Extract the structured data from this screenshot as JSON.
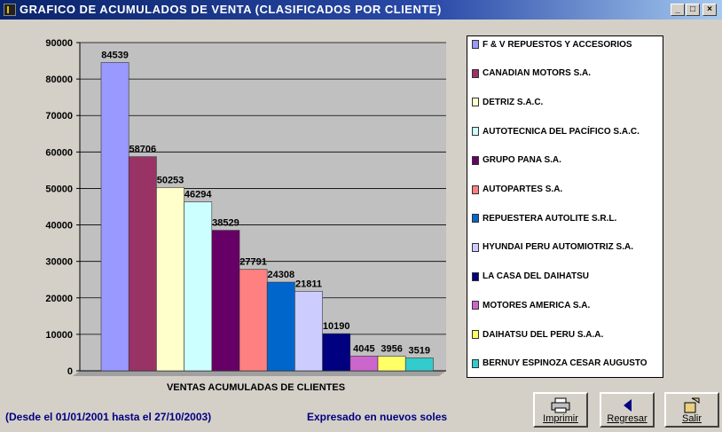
{
  "window": {
    "title": "GRAFICO DE ACUMULADOS DE VENTA (CLASIFICADOS POR CLIENTE)"
  },
  "chart_data": {
    "type": "bar",
    "xlabel": "VENTAS ACUMULADAS DE CLIENTES",
    "ylabel": "",
    "ylim": [
      0,
      90000
    ],
    "yticks": [
      0,
      10000,
      20000,
      30000,
      40000,
      50000,
      60000,
      70000,
      80000,
      90000
    ],
    "grid": true,
    "legend_position": "right",
    "series": [
      {
        "name": "F & V REPUESTOS Y ACCESORIOS",
        "value": 84539,
        "color": "#9999ff"
      },
      {
        "name": "CANADIAN MOTORS S.A.",
        "value": 58706,
        "color": "#993366"
      },
      {
        "name": "DETRIZ S.A.C.",
        "value": 50253,
        "color": "#ffffcc"
      },
      {
        "name": "AUTOTECNICA DEL PACÍFICO S.A.C.",
        "value": 46294,
        "color": "#ccffff"
      },
      {
        "name": "GRUPO PANA S.A.",
        "value": 38529,
        "color": "#660066"
      },
      {
        "name": "AUTOPARTES S.A.",
        "value": 27791,
        "color": "#ff8080"
      },
      {
        "name": "REPUESTERA AUTOLITE S.R.L.",
        "value": 24308,
        "color": "#0066cc"
      },
      {
        "name": "HYUNDAI PERU AUTOMIOTRIZ S.A.",
        "value": 21811,
        "color": "#ccccff"
      },
      {
        "name": "LA CASA DEL DAIHATSU",
        "value": 10190,
        "color": "#000080"
      },
      {
        "name": "MOTORES AMERICA S.A.",
        "value": 4045,
        "color": "#cc66cc"
      },
      {
        "name": "DAIHATSU DEL PERU S.A.A.",
        "value": 3956,
        "color": "#ffff66"
      },
      {
        "name": "BERNUY ESPINOZA CESAR AUGUSTO",
        "value": 3519,
        "color": "#33cccc"
      }
    ]
  },
  "footer": {
    "range": "(Desde el 01/01/2001 hasta el 27/10/2003)",
    "unit": "Expresado en nuevos soles"
  },
  "buttons": {
    "print": "Imprimir",
    "back": "Regresar",
    "exit": "Salir"
  },
  "icons": {
    "print": "printer-icon",
    "back": "left-arrow-icon",
    "exit": "exit-door-icon"
  }
}
